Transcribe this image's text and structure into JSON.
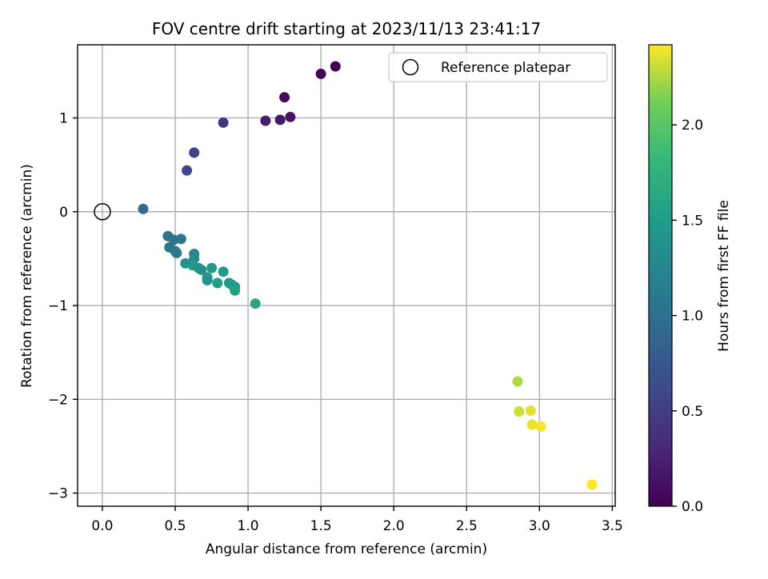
{
  "chart_data": {
    "type": "scatter",
    "title": "FOV centre drift starting at 2023/11/13 23:41:17",
    "xlabel": "Angular distance from reference (arcmin)",
    "ylabel": "Rotation from reference (arcmin)",
    "xlim": [
      -0.17,
      3.52
    ],
    "ylim": [
      -3.14,
      1.78
    ],
    "xticks": [
      0.0,
      0.5,
      1.0,
      1.5,
      2.0,
      2.5,
      3.0,
      3.5
    ],
    "xtick_labels": [
      "0.0",
      "0.5",
      "1.0",
      "1.5",
      "2.0",
      "2.5",
      "3.0",
      "3.5"
    ],
    "yticks": [
      -3,
      -2,
      -1,
      0,
      1
    ],
    "ytick_labels": [
      "−3",
      "−2",
      "−1",
      "0",
      "1"
    ],
    "grid": true,
    "legend": {
      "position": "top-right",
      "entries": [
        "Reference platepar"
      ]
    },
    "reference_point": {
      "name": "Reference platepar",
      "x": 0.0,
      "y": 0.0
    },
    "colorbar": {
      "label": "Hours from first FF file",
      "colormap": "viridis",
      "range": [
        0.0,
        2.42
      ],
      "ticks": [
        0.0,
        0.5,
        1.0,
        1.5,
        2.0
      ],
      "tick_labels": [
        "0.0",
        "0.5",
        "1.0",
        "1.5",
        "2.0"
      ]
    },
    "points": [
      {
        "x": 1.6,
        "y": 1.55,
        "t": 0.0
      },
      {
        "x": 1.5,
        "y": 1.47,
        "t": 0.03
      },
      {
        "x": 1.25,
        "y": 1.22,
        "t": 0.06
      },
      {
        "x": 1.29,
        "y": 1.01,
        "t": 0.15
      },
      {
        "x": 1.22,
        "y": 0.98,
        "t": 0.18
      },
      {
        "x": 1.12,
        "y": 0.97,
        "t": 0.22
      },
      {
        "x": 0.83,
        "y": 0.95,
        "t": 0.45
      },
      {
        "x": 0.63,
        "y": 0.63,
        "t": 0.55
      },
      {
        "x": 0.58,
        "y": 0.44,
        "t": 0.6
      },
      {
        "x": 0.28,
        "y": 0.03,
        "t": 0.95
      },
      {
        "x": 0.45,
        "y": -0.26,
        "t": 1.02
      },
      {
        "x": 0.49,
        "y": -0.3,
        "t": 1.06
      },
      {
        "x": 0.54,
        "y": -0.29,
        "t": 1.08
      },
      {
        "x": 0.46,
        "y": -0.38,
        "t": 1.05
      },
      {
        "x": 0.5,
        "y": -0.42,
        "t": 1.12
      },
      {
        "x": 0.51,
        "y": -0.44,
        "t": 1.1
      },
      {
        "x": 0.63,
        "y": -0.45,
        "t": 1.25
      },
      {
        "x": 0.63,
        "y": -0.5,
        "t": 1.3
      },
      {
        "x": 0.57,
        "y": -0.55,
        "t": 1.42
      },
      {
        "x": 0.62,
        "y": -0.57,
        "t": 1.45
      },
      {
        "x": 0.66,
        "y": -0.6,
        "t": 1.4
      },
      {
        "x": 0.68,
        "y": -0.62,
        "t": 1.38
      },
      {
        "x": 0.75,
        "y": -0.6,
        "t": 1.48
      },
      {
        "x": 0.83,
        "y": -0.64,
        "t": 1.5
      },
      {
        "x": 0.72,
        "y": -0.7,
        "t": 1.47
      },
      {
        "x": 0.72,
        "y": -0.73,
        "t": 1.4
      },
      {
        "x": 0.79,
        "y": -0.76,
        "t": 1.52
      },
      {
        "x": 0.87,
        "y": -0.76,
        "t": 1.45
      },
      {
        "x": 0.89,
        "y": -0.78,
        "t": 1.48
      },
      {
        "x": 0.91,
        "y": -0.8,
        "t": 1.5
      },
      {
        "x": 0.91,
        "y": -0.84,
        "t": 1.55
      },
      {
        "x": 1.05,
        "y": -0.98,
        "t": 1.62
      },
      {
        "x": 2.85,
        "y": -1.81,
        "t": 2.25
      },
      {
        "x": 2.86,
        "y": -2.13,
        "t": 2.32
      },
      {
        "x": 2.94,
        "y": -2.12,
        "t": 2.36
      },
      {
        "x": 2.95,
        "y": -2.27,
        "t": 2.38
      },
      {
        "x": 3.01,
        "y": -2.29,
        "t": 2.4
      },
      {
        "x": 3.36,
        "y": -2.91,
        "t": 2.42
      }
    ]
  }
}
